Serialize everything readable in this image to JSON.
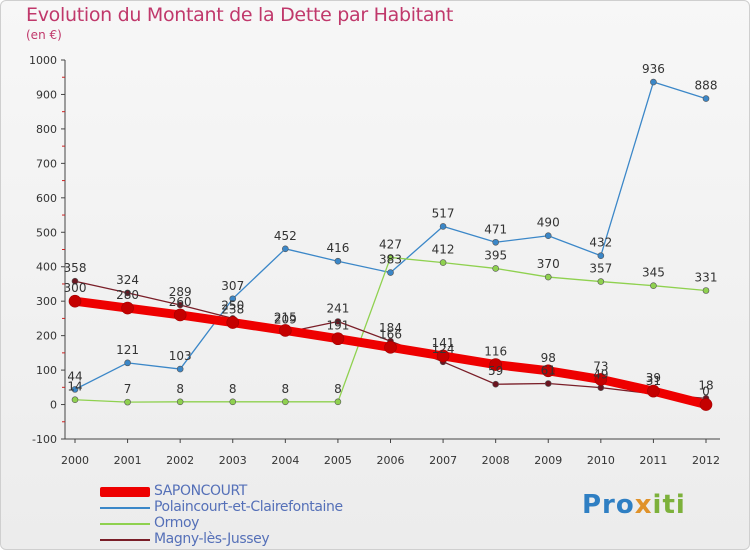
{
  "chart_data": {
    "type": "line",
    "title": "Evolution du Montant de la Dette par Habitant",
    "subtitle": "(en €)",
    "x": [
      2000,
      2001,
      2002,
      2003,
      2004,
      2005,
      2006,
      2007,
      2008,
      2009,
      2010,
      2011,
      2012
    ],
    "ylim": [
      -100,
      1000
    ],
    "yticks": [
      -100,
      0,
      100,
      200,
      300,
      400,
      500,
      600,
      700,
      800,
      900,
      1000
    ],
    "grid": false,
    "legend_position": "bottom-left",
    "series": [
      {
        "name": "SAPONCOURT",
        "color": "#ee0000",
        "values": [
          300,
          280,
          260,
          238,
          215,
          191,
          166,
          141,
          116,
          98,
          73,
          39,
          0
        ]
      },
      {
        "name": "Polaincourt-et-Clairefontaine",
        "color": "#3b87c8",
        "values": [
          44,
          121,
          103,
          307,
          452,
          416,
          383,
          517,
          471,
          490,
          432,
          936,
          888
        ]
      },
      {
        "name": "Ormoy",
        "color": "#8fd14f",
        "values": [
          14,
          7,
          8,
          8,
          8,
          8,
          427,
          412,
          395,
          370,
          357,
          345,
          331
        ]
      },
      {
        "name": "Magny-lès-Jussey",
        "color": "#7a1e28",
        "values": [
          358,
          324,
          289,
          250,
          209,
          241,
          184,
          124,
          59,
          61,
          49,
          31,
          18
        ]
      }
    ],
    "data_labels": [
      [
        "300",
        "280",
        "260",
        "238",
        "215",
        "191",
        "166",
        "141",
        "116",
        "98",
        "73",
        "39",
        "0"
      ],
      [
        "44",
        "121",
        "103",
        "307",
        "452",
        "416",
        "383",
        "517",
        "471",
        "490",
        "432",
        "936",
        "888"
      ],
      [
        "14",
        "7",
        "8",
        "8",
        "8",
        "8",
        "427",
        "412",
        "395",
        "370",
        "357",
        "345",
        "331"
      ],
      [
        "358",
        "324",
        "289",
        "250",
        "209",
        "241",
        "184",
        "124",
        "59",
        "61",
        "49",
        "31",
        "18"
      ]
    ]
  },
  "logo": {
    "part1": "Pro",
    "part2": "x",
    "part3": "iti"
  }
}
